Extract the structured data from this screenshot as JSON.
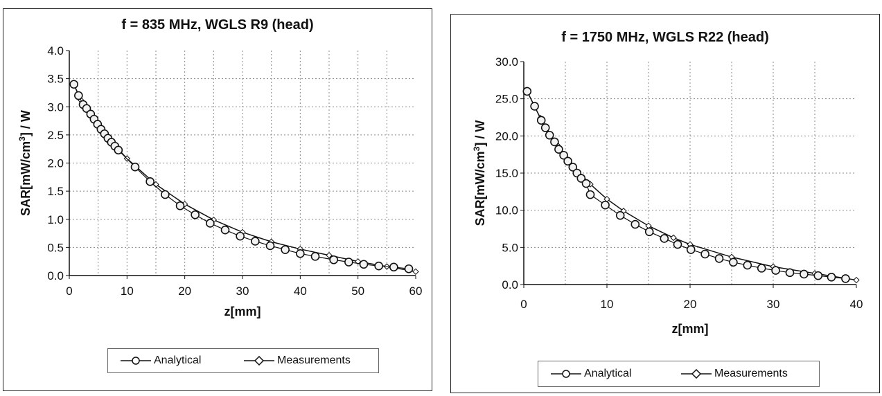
{
  "chart_data": [
    {
      "type": "line",
      "title": "f = 835 MHz, WGLS R9 (head)",
      "xlabel": "z[mm]",
      "ylabel_prefix": "SAR[mW/cm",
      "ylabel_sup": "3",
      "ylabel_suffix": "] / W",
      "xlim": [
        0,
        60
      ],
      "ylim": [
        0,
        4.0
      ],
      "x_ticks": [
        0,
        10,
        20,
        30,
        40,
        50,
        60
      ],
      "y_ticks": [
        "0.0",
        "0.5",
        "1.0",
        "1.5",
        "2.0",
        "2.5",
        "3.0",
        "3.5",
        "4.0"
      ],
      "grid": true,
      "legend_position": "bottom",
      "series": [
        {
          "name": "Analytical",
          "marker": "circle",
          "x": [
            0.8,
            1.6,
            2.4,
            3.0,
            3.7,
            4.3,
            4.9,
            5.5,
            6.1,
            6.7,
            7.3,
            7.9,
            8.5,
            11.4,
            14.0,
            16.6,
            19.2,
            21.8,
            24.4,
            27.0,
            29.6,
            32.2,
            34.8,
            37.4,
            40.0,
            42.6,
            45.8,
            48.4,
            51.0,
            53.6,
            56.2,
            58.8
          ],
          "y": [
            3.4,
            3.2,
            3.04,
            2.97,
            2.87,
            2.78,
            2.69,
            2.6,
            2.52,
            2.44,
            2.37,
            2.3,
            2.23,
            1.93,
            1.67,
            1.44,
            1.24,
            1.08,
            0.93,
            0.81,
            0.7,
            0.61,
            0.53,
            0.46,
            0.39,
            0.34,
            0.28,
            0.24,
            0.2,
            0.17,
            0.15,
            0.12
          ]
        },
        {
          "name": "Measurements",
          "marker": "diamond",
          "x": [
            0.8,
            2.0,
            4.0,
            6.0,
            8.0,
            10.0,
            15.0,
            20.0,
            25.0,
            30.0,
            35.0,
            40.0,
            45.0,
            50.0,
            55.0,
            60.0
          ],
          "y": [
            3.4,
            3.12,
            2.81,
            2.55,
            2.3,
            2.08,
            1.62,
            1.27,
            0.99,
            0.77,
            0.6,
            0.47,
            0.36,
            0.25,
            0.16,
            0.07
          ]
        }
      ]
    },
    {
      "type": "line",
      "title": "f = 1750 MHz, WGLS R22 (head)",
      "xlabel": "z[mm]",
      "ylabel_prefix": "SAR[mW/cm",
      "ylabel_sup": "3",
      "ylabel_suffix": "] / W",
      "xlim": [
        0,
        40
      ],
      "ylim": [
        0,
        30.0
      ],
      "x_ticks": [
        0,
        10,
        20,
        30,
        40
      ],
      "y_ticks": [
        "0.0",
        "5.0",
        "10.0",
        "15.0",
        "20.0",
        "25.0",
        "30.0"
      ],
      "grid": true,
      "legend_position": "bottom",
      "series": [
        {
          "name": "Analytical",
          "marker": "circle",
          "x": [
            0.4,
            1.3,
            2.1,
            2.6,
            3.1,
            3.7,
            4.2,
            4.8,
            5.3,
            5.9,
            6.4,
            6.9,
            7.5,
            8.0,
            9.8,
            11.6,
            13.4,
            15.1,
            16.9,
            18.5,
            20.1,
            21.8,
            23.5,
            25.2,
            26.9,
            28.6,
            30.3,
            32.0,
            33.7,
            35.4,
            37.0,
            38.7
          ],
          "y": [
            26.0,
            24.0,
            22.1,
            21.1,
            20.1,
            19.2,
            18.2,
            17.4,
            16.6,
            15.8,
            15.0,
            14.3,
            13.6,
            12.1,
            10.7,
            9.3,
            8.1,
            7.1,
            6.2,
            5.4,
            4.7,
            4.1,
            3.5,
            3.0,
            2.6,
            2.2,
            1.9,
            1.6,
            1.4,
            1.2,
            1.0,
            0.8
          ]
        },
        {
          "name": "Measurements",
          "marker": "diamond",
          "x": [
            0.4,
            2.0,
            4.0,
            6.0,
            8.0,
            10.0,
            12.0,
            15.0,
            18.0,
            20.0,
            25.0,
            30.0,
            35.0,
            40.0
          ],
          "y": [
            26.0,
            22.4,
            18.8,
            15.9,
            13.5,
            11.5,
            9.9,
            7.9,
            6.3,
            5.4,
            3.7,
            2.4,
            1.5,
            0.6
          ]
        }
      ]
    }
  ]
}
